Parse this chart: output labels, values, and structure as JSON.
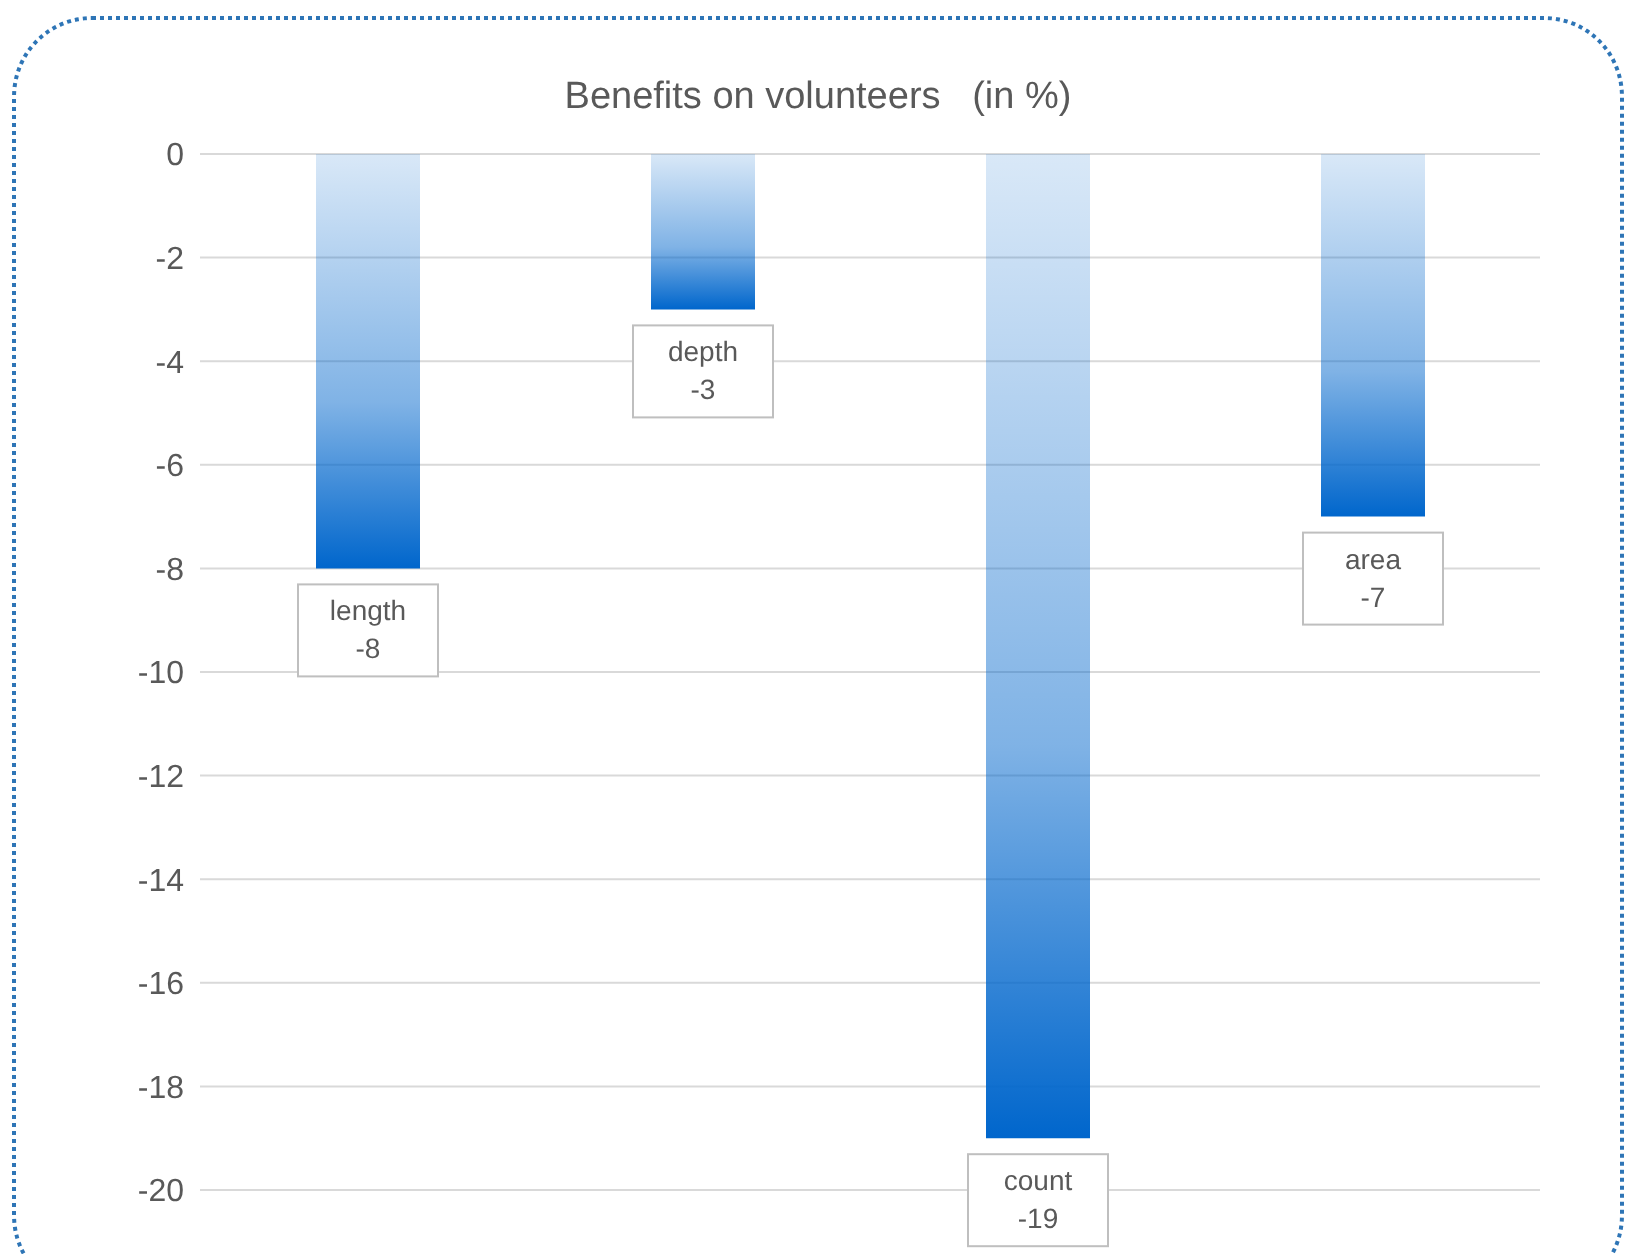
{
  "chart_data": {
    "type": "bar",
    "title": "Benefits on volunteers   (in %)",
    "categories": [
      "length",
      "depth",
      "count",
      "area"
    ],
    "values": [
      -8,
      -3,
      -19,
      -7
    ],
    "color": "#0066cc",
    "ylim": [
      -20,
      0
    ],
    "yticks": [
      0,
      -2,
      -4,
      -6,
      -8,
      -10,
      -12,
      -14,
      -16,
      -18,
      -20
    ],
    "grid": "y",
    "tick_labels": "y",
    "data_labels": true
  }
}
